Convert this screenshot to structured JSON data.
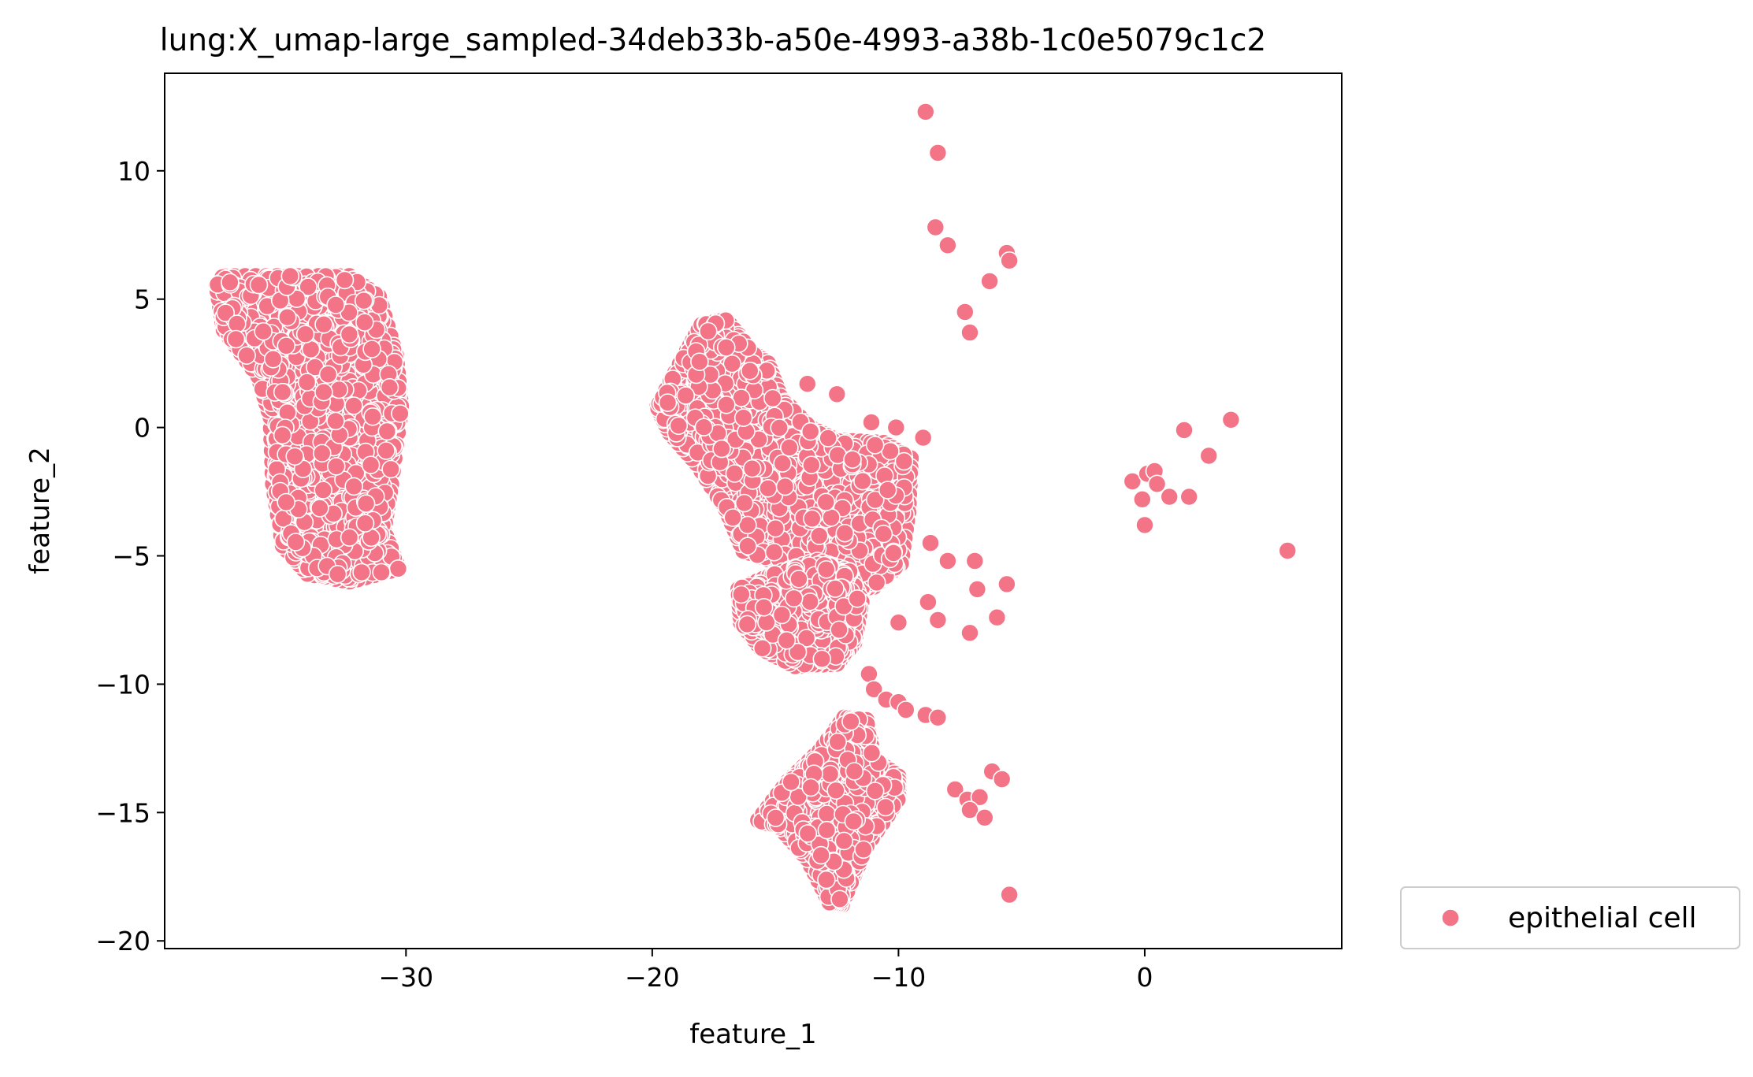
{
  "chart_data": {
    "type": "scatter",
    "title": "lung:X_umap-large_sampled-34deb33b-a50e-4993-a38b-1c0e5079c1c2",
    "xlabel": "feature_1",
    "ylabel": "feature_2",
    "xlim": [
      -39.8,
      8.0
    ],
    "ylim": [
      -20.3,
      13.8
    ],
    "xticks": [
      -30,
      -20,
      -10,
      0
    ],
    "yticks": [
      -20,
      -15,
      -10,
      -5,
      0,
      5,
      10
    ],
    "xtick_labels": [
      "−30",
      "−20",
      "−10",
      "0"
    ],
    "ytick_labels": [
      "−20",
      "−15",
      "−10",
      "−5",
      "0",
      "5",
      "10"
    ],
    "grid": false,
    "legend_position": "outside-bottom-right",
    "series": [
      {
        "name": "epithelial cell",
        "color": "#f37487",
        "clusters": [
          {
            "polygon": [
              [
                -37.4,
                5.9
              ],
              [
                -34.8,
                5.9
              ],
              [
                -32.3,
                5.9
              ],
              [
                -31.1,
                5.1
              ],
              [
                -30.4,
                2.8
              ],
              [
                -30.2,
                0.8
              ],
              [
                -30.6,
                -2.2
              ],
              [
                -30.9,
                -4.0
              ],
              [
                -30.3,
                -5.5
              ],
              [
                -32.3,
                -6.0
              ],
              [
                -34.0,
                -5.7
              ],
              [
                -35.0,
                -4.6
              ],
              [
                -35.4,
                -2.2
              ],
              [
                -35.5,
                0.4
              ],
              [
                -36.0,
                2.0
              ],
              [
                -37.4,
                3.8
              ],
              [
                -37.7,
                5.6
              ]
            ],
            "n": 1150,
            "seed": 11
          },
          {
            "polygon": [
              [
                -19.8,
                0.8
              ],
              [
                -18.7,
                2.8
              ],
              [
                -18.0,
                4.0
              ],
              [
                -17.0,
                4.2
              ],
              [
                -16.0,
                3.0
              ],
              [
                -15.3,
                2.5
              ],
              [
                -14.8,
                1.2
              ],
              [
                -13.6,
                0.0
              ],
              [
                -12.5,
                -0.5
              ],
              [
                -10.6,
                -0.6
              ],
              [
                -9.5,
                -1.2
              ],
              [
                -9.6,
                -3.3
              ],
              [
                -9.9,
                -5.3
              ],
              [
                -11.0,
                -6.2
              ],
              [
                -12.3,
                -6.4
              ],
              [
                -13.6,
                -5.6
              ],
              [
                -14.8,
                -5.3
              ],
              [
                -16.3,
                -4.8
              ],
              [
                -17.0,
                -3.2
              ],
              [
                -18.2,
                -1.4
              ],
              [
                -19.3,
                -0.2
              ]
            ],
            "n": 900,
            "seed": 23
          },
          {
            "polygon": [
              [
                -16.5,
                -6.3
              ],
              [
                -15.0,
                -5.7
              ],
              [
                -13.3,
                -5.2
              ],
              [
                -12.0,
                -5.6
              ],
              [
                -11.5,
                -6.8
              ],
              [
                -11.8,
                -8.4
              ],
              [
                -12.5,
                -9.2
              ],
              [
                -14.2,
                -9.3
              ],
              [
                -15.6,
                -8.6
              ],
              [
                -16.4,
                -7.6
              ]
            ],
            "n": 380,
            "seed": 37
          },
          {
            "polygon": [
              [
                -15.7,
                -15.3
              ],
              [
                -14.5,
                -13.8
              ],
              [
                -13.2,
                -12.6
              ],
              [
                -12.2,
                -11.3
              ],
              [
                -11.3,
                -11.4
              ],
              [
                -11.0,
                -12.9
              ],
              [
                -10.0,
                -13.6
              ],
              [
                -10.0,
                -14.5
              ],
              [
                -11.3,
                -16.3
              ],
              [
                -12.3,
                -18.6
              ],
              [
                -12.8,
                -18.5
              ],
              [
                -13.7,
                -16.8
              ],
              [
                -14.8,
                -15.6
              ]
            ],
            "n": 440,
            "seed": 53
          }
        ],
        "points": [
          [
            -8.9,
            12.3
          ],
          [
            -8.4,
            10.7
          ],
          [
            -8.5,
            7.8
          ],
          [
            -8.0,
            7.1
          ],
          [
            -5.6,
            6.8
          ],
          [
            -5.5,
            6.5
          ],
          [
            -6.3,
            5.7
          ],
          [
            -7.3,
            4.5
          ],
          [
            -7.1,
            3.7
          ],
          [
            -13.7,
            1.7
          ],
          [
            -12.5,
            1.3
          ],
          [
            -11.1,
            0.2
          ],
          [
            -10.1,
            0.0
          ],
          [
            -9.0,
            -0.4
          ],
          [
            -8.7,
            -4.5
          ],
          [
            -8.0,
            -5.2
          ],
          [
            -6.9,
            -5.2
          ],
          [
            -6.8,
            -6.3
          ],
          [
            -5.6,
            -6.1
          ],
          [
            -8.8,
            -6.8
          ],
          [
            -8.4,
            -7.5
          ],
          [
            -10.0,
            -7.6
          ],
          [
            -7.1,
            -8.0
          ],
          [
            -6.0,
            -7.4
          ],
          [
            -11.2,
            -9.6
          ],
          [
            -11.0,
            -10.2
          ],
          [
            -10.5,
            -10.6
          ],
          [
            -10.0,
            -10.7
          ],
          [
            -9.7,
            -11.0
          ],
          [
            -8.9,
            -11.2
          ],
          [
            -8.4,
            -11.3
          ],
          [
            -7.7,
            -14.1
          ],
          [
            -7.2,
            -14.5
          ],
          [
            -6.7,
            -14.4
          ],
          [
            -7.1,
            -14.9
          ],
          [
            -6.5,
            -15.2
          ],
          [
            -6.2,
            -13.4
          ],
          [
            -5.8,
            -13.7
          ],
          [
            -5.5,
            -18.2
          ],
          [
            -0.5,
            -2.1
          ],
          [
            0.1,
            -1.8
          ],
          [
            0.4,
            -1.7
          ],
          [
            -0.1,
            -2.8
          ],
          [
            0.5,
            -2.2
          ],
          [
            1.0,
            -2.7
          ],
          [
            1.8,
            -2.7
          ],
          [
            1.6,
            -0.1
          ],
          [
            2.6,
            -1.1
          ],
          [
            3.5,
            0.3
          ],
          [
            0.0,
            -3.8
          ],
          [
            5.8,
            -4.8
          ]
        ]
      }
    ]
  }
}
